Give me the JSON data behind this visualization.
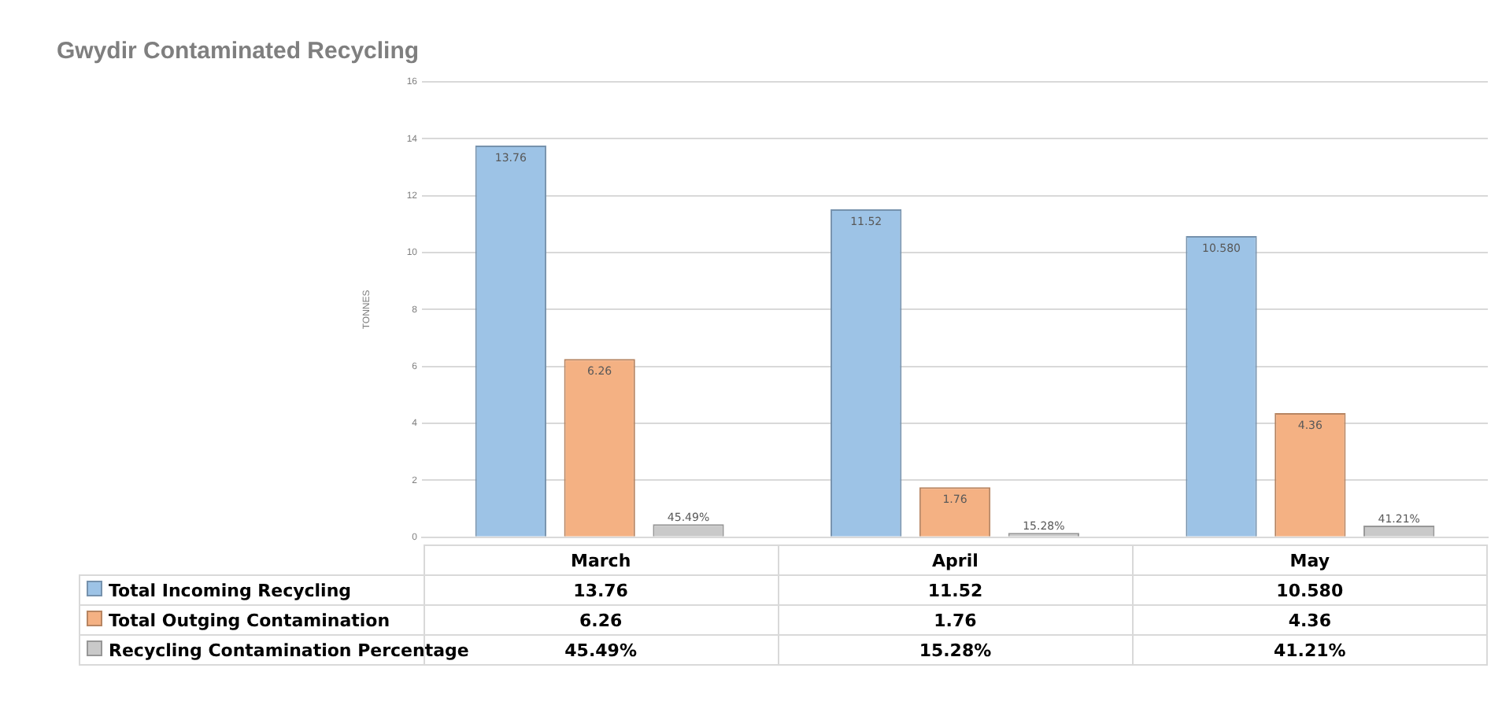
{
  "chart_data": {
    "type": "bar",
    "title": "Gwydir Contaminated Recycling",
    "ylabel": "TONNES",
    "categories": [
      "March",
      "April",
      "May"
    ],
    "series": [
      {
        "name": "Total Incoming Recycling",
        "color": "#9dc3e6",
        "values": [
          13.76,
          11.52,
          10.58
        ],
        "value_labels": [
          "13.76",
          "11.52",
          "10.580"
        ]
      },
      {
        "name": "Total Outging Contamination",
        "color": "#f4b183",
        "values": [
          6.26,
          1.76,
          4.36
        ],
        "value_labels": [
          "6.26",
          "1.76",
          "4.36"
        ]
      },
      {
        "name": "Recycling Contamination Percentage",
        "color": "#c9c9c9",
        "values": [
          0.4549,
          0.1528,
          0.4121
        ],
        "value_labels": [
          "45.49%",
          "15.28%",
          "41.21%"
        ]
      }
    ],
    "ylim": [
      0,
      16
    ],
    "yticks": [
      0,
      2,
      4,
      6,
      8,
      10,
      12,
      14,
      16
    ],
    "grid": "y",
    "legend": "bottom"
  }
}
